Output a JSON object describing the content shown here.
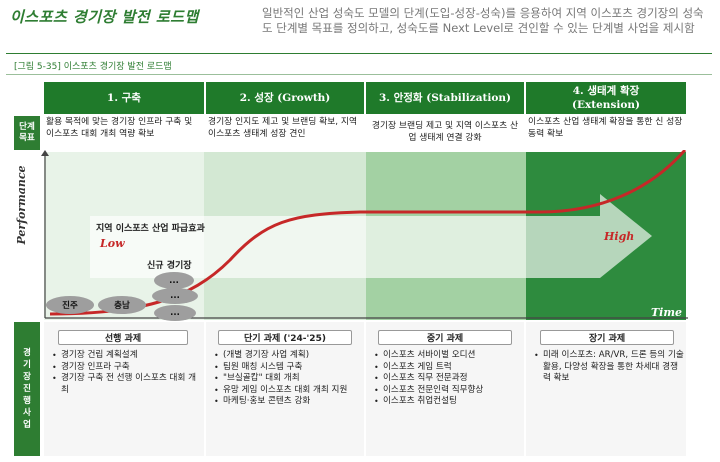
{
  "header": {
    "title": "이스포츠 경기장 발전 로드맵",
    "subtitle": "일반적인 산업 성숙도 모델의 단계(도입-성장-성숙)를 응용하여 지역 이스포츠 경기장의 성숙도 단계별 목표를 정의하고, 성숙도를 Next Level로 견인할 수 있는 단계별 사업을 제시함"
  },
  "figure_label": "[그림 5-35] 이스포츠 경기장 발전 로드맵",
  "side_labels": {
    "goal": "단계 목표",
    "tasks": "경기장 진행사업"
  },
  "stages": [
    {
      "title": "1. 구축",
      "subtitle": "",
      "goal": "활용 목적에 맞는 경기장 인프라 구축 및 이스포츠 대회 개최 역량 확보"
    },
    {
      "title": "2. 성장 (Growth)",
      "subtitle": "",
      "goal": "경기장 인지도 제고 및 브랜딩 확보, 지역 이스포츠 생태계 성장 견인"
    },
    {
      "title": "3. 안정화 (Stabilization)",
      "subtitle": "",
      "goal": "경기장 브랜딩 제고 및 지역 이스포츠 산업 생태계 연결 강화"
    },
    {
      "title": "4. 생태계 확장",
      "subtitle": "(Extension)",
      "goal": "이스포츠 산업 생태계 확장을 통한 신 성장동력 확보"
    }
  ],
  "chart": {
    "y_axis_label": "Performance",
    "x_axis_label": "Time",
    "low_label": "Low",
    "high_label": "High",
    "effect_label": "지역 이스포츠 산업 파급효과",
    "new_stadium_label": "신규 경기장",
    "stadiums": [
      "진주",
      "충남",
      "...",
      "...",
      "..."
    ],
    "colors": {
      "band1": "#e8f3e8",
      "band2": "#cfe6cf",
      "band3": "#9fce9f",
      "band4": "#2e8b3e",
      "curve": "#c62828",
      "arrow": "#ffffff"
    }
  },
  "tasks": [
    {
      "title": "선행 과제",
      "items": [
        "경기장 건립 계획설계",
        "경기장 인프라 구축",
        "경기장 구축 전 선행 이스포츠 대회 개최"
      ]
    },
    {
      "title": "단기 과제 ('24-'25)",
      "items": [
        "(개별 경기장 사업 계획)",
        "팀원 매칭 시스템 구축",
        "\"브실골캅\" 대회 개최",
        "유망 게임 이스포츠 대회 개최 지원",
        "마케팅·홍보 콘텐츠 강화"
      ]
    },
    {
      "title": "중기 과제",
      "items": [
        "이스포츠 서바이벌 오디션",
        "이스포츠 게임 트럭",
        "이스포츠 직무 전문과정",
        "이스포츠 전문인력 직무향상",
        "이스포츠 취업컨설팅"
      ]
    },
    {
      "title": "장기 과제",
      "items": [
        "미래 이스포츠: AR/VR, 드론 등의 기술 활용, 다양성 확장을 통한 차세대 경쟁력 확보"
      ]
    }
  ]
}
